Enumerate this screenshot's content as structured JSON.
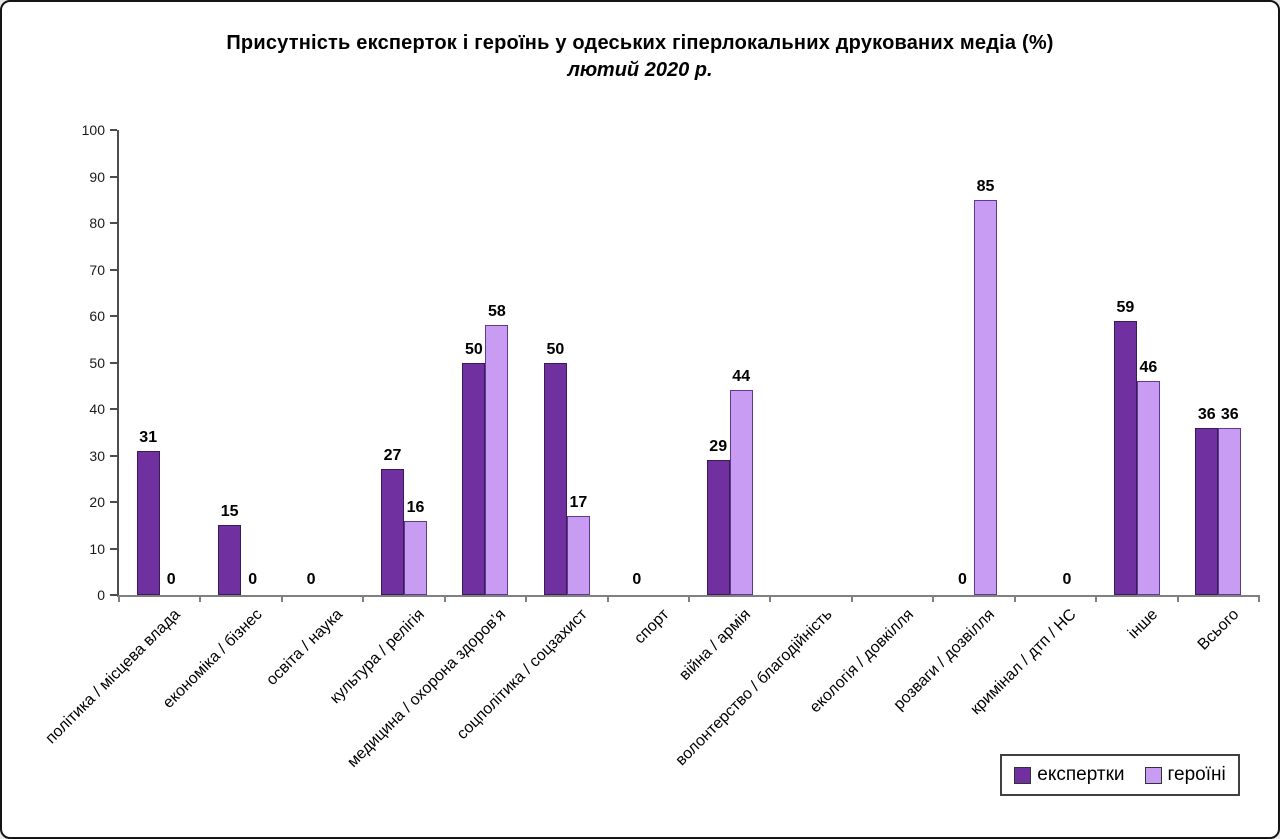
{
  "frame": {
    "background": "#ffffff",
    "border_color": "#141414"
  },
  "chart_data": {
    "type": "bar",
    "title": "Присутність експерток і героїнь у одеських гіперлокальних друкованих медіа (%)",
    "subtitle": "лютий 2020 р.",
    "categories": [
      "політика / місцева влада",
      "економіка / бізнес",
      "освіта / наука",
      "культура / релігія",
      "медицина / охорона здоров’я",
      "соцполітика / соцзахист",
      "спорт",
      "війна / армія",
      "волонтерство / благодійність",
      "екологія / довкілля",
      "розваги / дозвілля",
      "кримінал / дтп / НС",
      "інше",
      "Всього"
    ],
    "series": [
      {
        "name": "експертки",
        "color": "#7030A0",
        "border_color": "#3a1b55",
        "values": [
          31,
          15,
          0,
          27,
          50,
          50,
          0,
          29,
          null,
          null,
          0,
          null,
          59,
          36
        ]
      },
      {
        "name": "героїні",
        "color": "#C79CF2",
        "border_color": "#5f3a8f",
        "values": [
          0,
          0,
          null,
          16,
          58,
          17,
          null,
          44,
          null,
          null,
          85,
          0,
          46,
          36
        ]
      }
    ],
    "ylim": [
      0,
      100
    ],
    "y_ticks": [
      0,
      10,
      20,
      30,
      40,
      50,
      60,
      70,
      80,
      90,
      100
    ],
    "grid": false,
    "value_labels": true,
    "legend_position": "bottom-right",
    "xlabel": "",
    "ylabel": ""
  },
  "legend": {
    "items": [
      {
        "label": "експертки",
        "color": "#7030A0"
      },
      {
        "label": "героїні",
        "color": "#C79CF2"
      }
    ]
  }
}
